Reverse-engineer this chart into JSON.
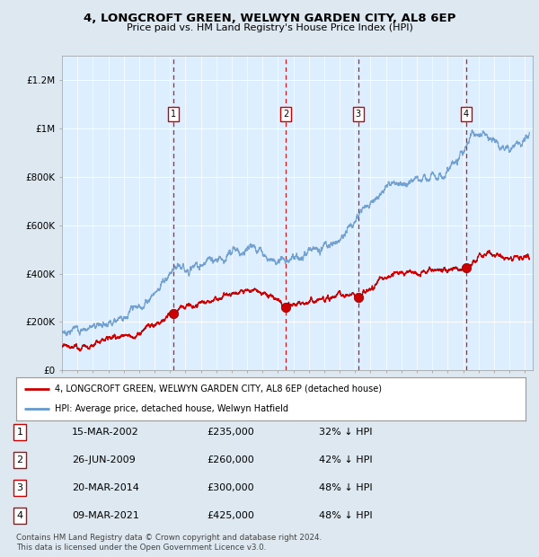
{
  "title": "4, LONGCROFT GREEN, WELWYN GARDEN CITY, AL8 6EP",
  "subtitle": "Price paid vs. HM Land Registry's House Price Index (HPI)",
  "bg_color": "#dde8f0",
  "plot_bg_color": "#ddeeff",
  "red_line_color": "#cc0000",
  "blue_line_color": "#6699cc",
  "sale_marker_color": "#cc0000",
  "vline_color": "#cc0000",
  "grid_color": "#ffffff",
  "ylim": [
    0,
    1300000
  ],
  "yticks": [
    0,
    200000,
    400000,
    600000,
    800000,
    1000000,
    1200000
  ],
  "ytick_labels": [
    "£0",
    "£200K",
    "£400K",
    "£600K",
    "£800K",
    "£1M",
    "£1.2M"
  ],
  "xstart": 1995.0,
  "xend": 2025.5,
  "sales": [
    {
      "num": 1,
      "date": "15-MAR-2002",
      "year": 2002.2,
      "price": 235000,
      "pct": "32%",
      "dir": "↓"
    },
    {
      "num": 2,
      "date": "26-JUN-2009",
      "year": 2009.5,
      "price": 260000,
      "pct": "42%",
      "dir": "↓"
    },
    {
      "num": 3,
      "date": "20-MAR-2014",
      "year": 2014.2,
      "price": 300000,
      "pct": "48%",
      "dir": "↓"
    },
    {
      "num": 4,
      "date": "09-MAR-2021",
      "year": 2021.2,
      "price": 425000,
      "pct": "48%",
      "dir": "↓"
    }
  ],
  "legend_line1": "4, LONGCROFT GREEN, WELWYN GARDEN CITY, AL8 6EP (detached house)",
  "legend_line2": "HPI: Average price, detached house, Welwyn Hatfield",
  "footnote1": "Contains HM Land Registry data © Crown copyright and database right 2024.",
  "footnote2": "This data is licensed under the Open Government Licence v3.0."
}
